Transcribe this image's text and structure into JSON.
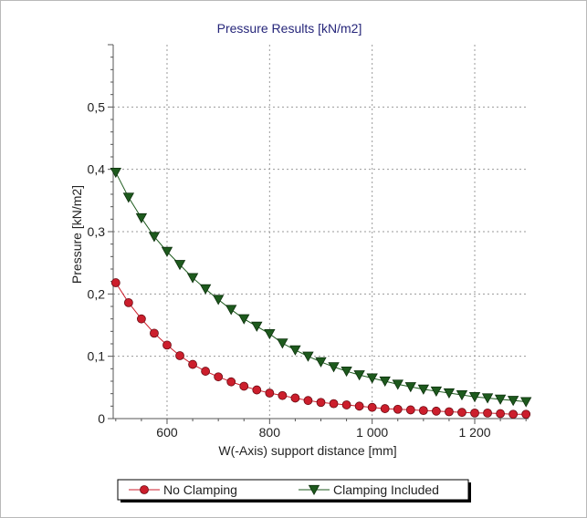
{
  "chart_data": {
    "type": "line",
    "title": "Pressure Results [kN/m2]",
    "xlabel": "W(-Axis) support distance [mm]",
    "ylabel": "Pressure [kN/m2]",
    "xlim": [
      495,
      1305
    ],
    "ylim": [
      0,
      0.6
    ],
    "x_ticks": [
      600,
      800,
      1000,
      1200
    ],
    "x_tick_labels": [
      "600",
      "800",
      "1 000",
      "1 200"
    ],
    "y_ticks": [
      0,
      0.1,
      0.2,
      0.3,
      0.4,
      0.5
    ],
    "y_tick_labels": [
      "0",
      "0,1",
      "0,2",
      "0,3",
      "0,4",
      "0,5"
    ],
    "grid": true,
    "legend_position": "bottom-center",
    "x": [
      500,
      525,
      550,
      575,
      600,
      625,
      650,
      675,
      700,
      725,
      750,
      775,
      800,
      825,
      850,
      875,
      900,
      925,
      950,
      975,
      1000,
      1025,
      1050,
      1075,
      1100,
      1125,
      1150,
      1175,
      1200,
      1225,
      1250,
      1275,
      1300
    ],
    "series": [
      {
        "name": "No Clamping",
        "color": "#cc1e2c",
        "marker": "circle",
        "values": [
          0.218,
          0.186,
          0.16,
          0.137,
          0.118,
          0.101,
          0.087,
          0.076,
          0.067,
          0.059,
          0.052,
          0.046,
          0.041,
          0.037,
          0.033,
          0.029,
          0.026,
          0.024,
          0.022,
          0.02,
          0.018,
          0.016,
          0.015,
          0.014,
          0.013,
          0.012,
          0.011,
          0.01,
          0.009,
          0.009,
          0.008,
          0.007,
          0.007
        ]
      },
      {
        "name": "Clamping Included",
        "color": "#1d5a1d",
        "marker": "triangle-down",
        "values": [
          0.395,
          0.355,
          0.322,
          0.292,
          0.268,
          0.247,
          0.226,
          0.208,
          0.191,
          0.175,
          0.16,
          0.148,
          0.136,
          0.121,
          0.11,
          0.1,
          0.091,
          0.083,
          0.076,
          0.07,
          0.065,
          0.06,
          0.055,
          0.051,
          0.047,
          0.044,
          0.041,
          0.038,
          0.035,
          0.033,
          0.031,
          0.029,
          0.027
        ]
      }
    ]
  }
}
